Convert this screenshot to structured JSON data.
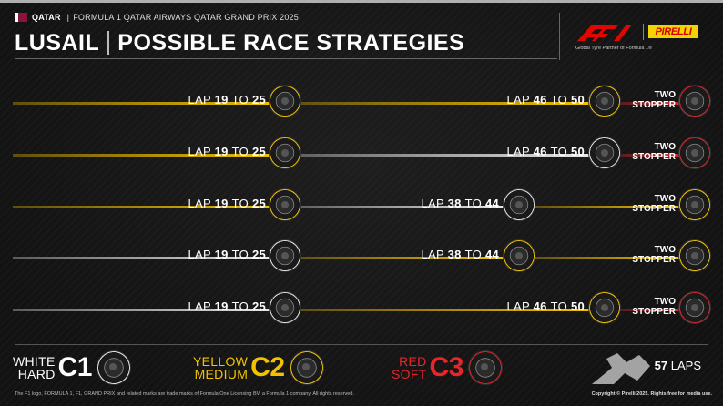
{
  "header": {
    "country": "QATAR",
    "event": "FORMULA 1 QATAR AIRWAYS QATAR GRAND PRIX 2025",
    "title_left": "LUSAIL",
    "title_right": "POSSIBLE RACE STRATEGIES",
    "partner_text": "Global Tyre Partner of Formula 1®",
    "pirelli_logo": "PIRELLI"
  },
  "colors": {
    "white": "#e8e8e8",
    "yellow": "#f2c200",
    "red": "#d8262a",
    "background": "#151515"
  },
  "strategies": [
    {
      "stops": "TWO STOPPER",
      "lap1": "LAP",
      "lap1_from": "19",
      "lap1_to_word": "TO",
      "lap1_to": "25",
      "lap2": "LAP",
      "lap2_from": "46",
      "lap2_to_word": "TO",
      "lap2_to": "50",
      "stint1": "yellow",
      "stint2": "yellow",
      "stint3": "red",
      "pit1_tyre": "yellow",
      "pit2_tyre": "yellow",
      "final_tyre": "red"
    },
    {
      "stops": "TWO STOPPER",
      "lap1": "LAP",
      "lap1_from": "19",
      "lap1_to_word": "TO",
      "lap1_to": "25",
      "lap2": "LAP",
      "lap2_from": "46",
      "lap2_to_word": "TO",
      "lap2_to": "50",
      "stint1": "yellow",
      "stint2": "white",
      "stint3": "red",
      "pit1_tyre": "yellow",
      "pit2_tyre": "white",
      "final_tyre": "red"
    },
    {
      "stops": "TWO STOPPER",
      "lap1": "LAP",
      "lap1_from": "19",
      "lap1_to_word": "TO",
      "lap1_to": "25",
      "lap2": "LAP",
      "lap2_from": "38",
      "lap2_to_word": "TO",
      "lap2_to": "44",
      "stint1": "yellow",
      "stint2": "white",
      "stint3": "yellow",
      "pit1_tyre": "yellow",
      "pit2_tyre": "white",
      "final_tyre": "yellow"
    },
    {
      "stops": "TWO STOPPER",
      "lap1": "LAP",
      "lap1_from": "19",
      "lap1_to_word": "TO",
      "lap1_to": "25",
      "lap2": "LAP",
      "lap2_from": "38",
      "lap2_to_word": "TO",
      "lap2_to": "44",
      "stint1": "white",
      "stint2": "yellow",
      "stint3": "yellow",
      "pit1_tyre": "white",
      "pit2_tyre": "yellow",
      "final_tyre": "yellow"
    },
    {
      "stops": "TWO STOPPER",
      "lap1": "LAP",
      "lap1_from": "19",
      "lap1_to_word": "TO",
      "lap1_to": "25",
      "lap2": "LAP",
      "lap2_from": "46",
      "lap2_to_word": "TO",
      "lap2_to": "50",
      "stint1": "white",
      "stint2": "yellow",
      "stint3": "red",
      "pit1_tyre": "white",
      "pit2_tyre": "yellow",
      "final_tyre": "red"
    }
  ],
  "legend": [
    {
      "color_word": "WHITE",
      "hardness": "HARD",
      "compound": "C1",
      "color": "white"
    },
    {
      "color_word": "YELLOW",
      "hardness": "MEDIUM",
      "compound": "C2",
      "color": "yellow"
    },
    {
      "color_word": "RED",
      "hardness": "SOFT",
      "compound": "C3",
      "color": "red"
    }
  ],
  "laps": {
    "count": "57",
    "label": "LAPS"
  },
  "footer": {
    "legal": "The F1 logo, FORMULA 1, F1, GRAND PRIX and related marks are trade marks of Formula One Licensing BV, a Formula 1 company. All rights reserved.",
    "copyright": "Copyright © Pirelli 2025. Rights free for media use."
  }
}
